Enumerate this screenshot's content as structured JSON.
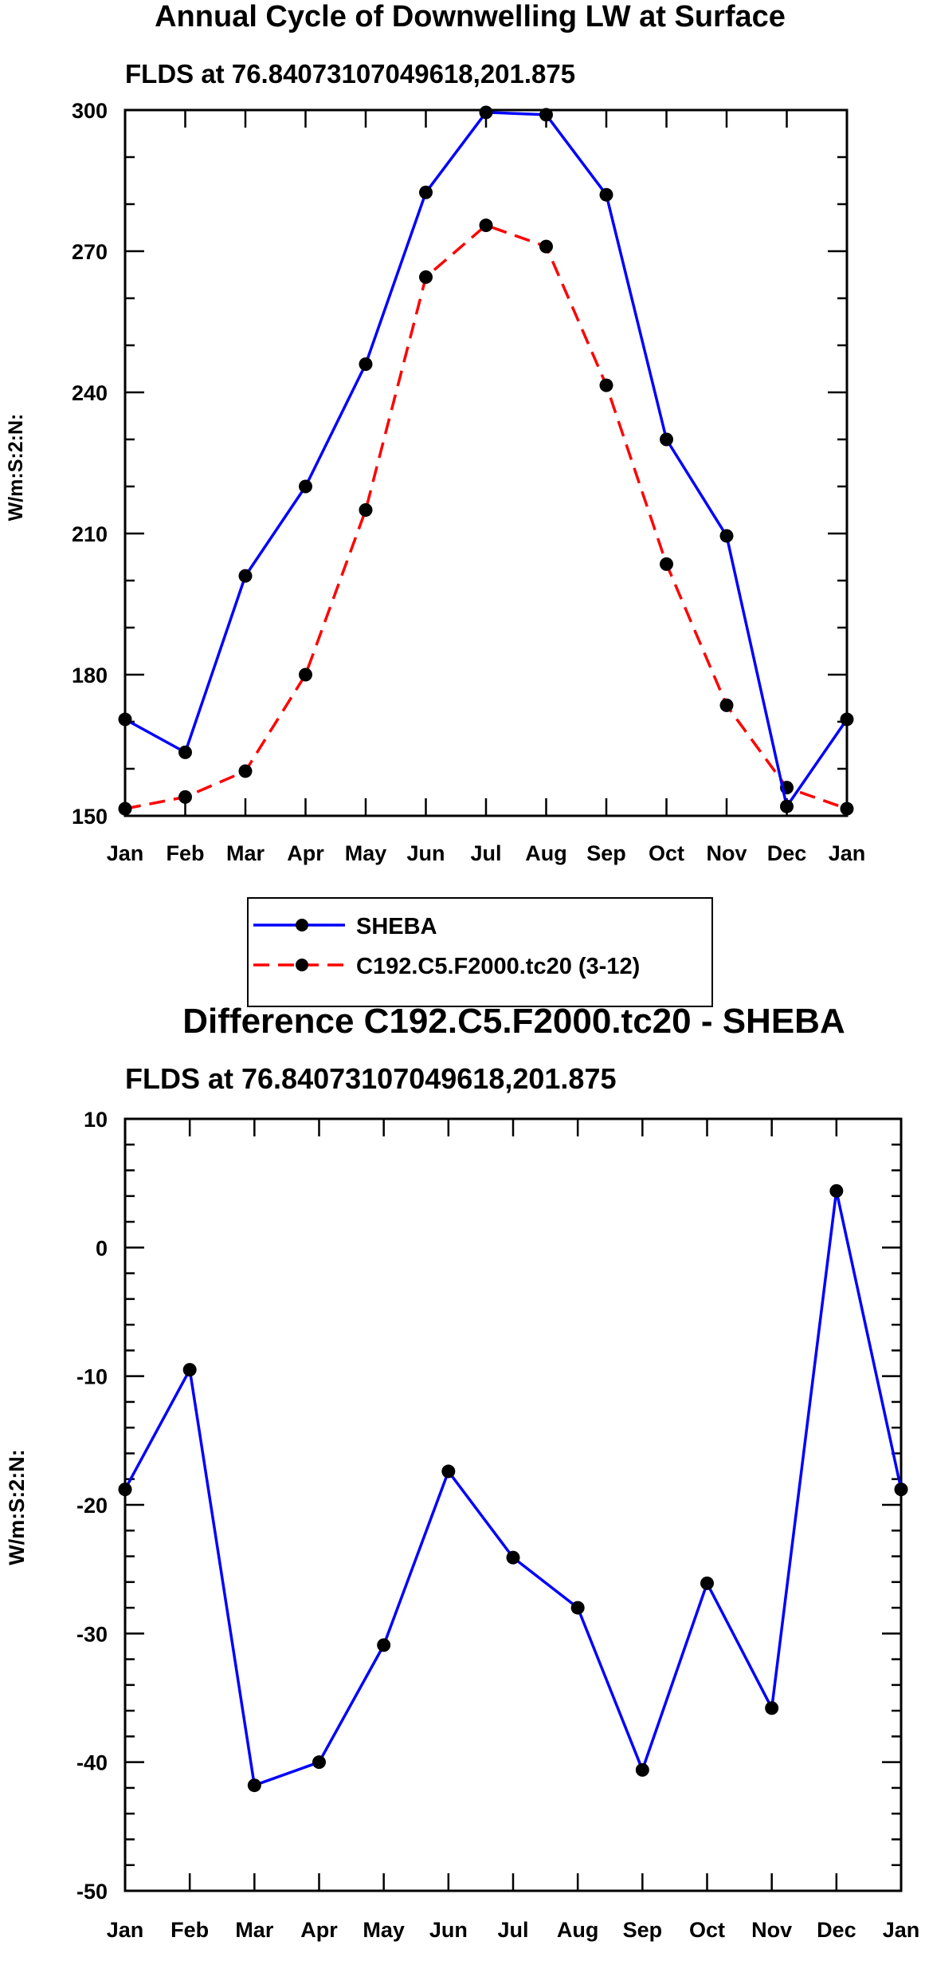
{
  "colors": {
    "series_a": "#0000ff",
    "series_b": "#ff0000",
    "marker": "#000000",
    "axis": "#000000"
  },
  "chart_data": [
    {
      "type": "line",
      "title": "Annual Cycle of Downwelling LW at Surface",
      "subtitle": "FLDS at 76.84073107049618,201.875",
      "xlabel": "",
      "ylabel": "W/m:S:2:N:",
      "categories": [
        "Jan",
        "Feb",
        "Mar",
        "Apr",
        "May",
        "Jun",
        "Jul",
        "Aug",
        "Sep",
        "Oct",
        "Nov",
        "Dec",
        "Jan"
      ],
      "ylim": [
        150,
        300
      ],
      "yticks": [
        150,
        180,
        210,
        240,
        270,
        300
      ],
      "legend_position": "bottom",
      "series": [
        {
          "name": "SHEBA",
          "style": "solid",
          "color": "#0000ff",
          "values": [
            170.5,
            163.5,
            201,
            220,
            246,
            282.5,
            299.5,
            299,
            282,
            230,
            209.5,
            152,
            170.5
          ]
        },
        {
          "name": "C192.C5.F2000.tc20 (3-12)",
          "style": "dashed",
          "color": "#ff0000",
          "values": [
            151.5,
            154,
            159.5,
            180,
            215,
            264.5,
            275.5,
            271,
            241.5,
            203.5,
            173.5,
            156,
            151.5
          ]
        }
      ]
    },
    {
      "type": "line",
      "title": "Difference C192.C5.F2000.tc20 - SHEBA",
      "subtitle": "FLDS at 76.84073107049618,201.875",
      "xlabel": "",
      "ylabel": "W/m:S:2:N:",
      "categories": [
        "Jan",
        "Feb",
        "Mar",
        "Apr",
        "May",
        "Jun",
        "Jul",
        "Aug",
        "Sep",
        "Oct",
        "Nov",
        "Dec",
        "Jan"
      ],
      "ylim": [
        -50,
        10
      ],
      "yticks": [
        -50,
        -40,
        -30,
        -20,
        -10,
        0,
        10
      ],
      "series": [
        {
          "name": "Difference",
          "style": "solid",
          "color": "#0000ff",
          "values": [
            -18.8,
            -9.5,
            -41.8,
            -40,
            -30.9,
            -17.4,
            -24.1,
            -28,
            -40.6,
            -26.1,
            -35.8,
            4.4,
            -18.8
          ]
        }
      ]
    }
  ]
}
